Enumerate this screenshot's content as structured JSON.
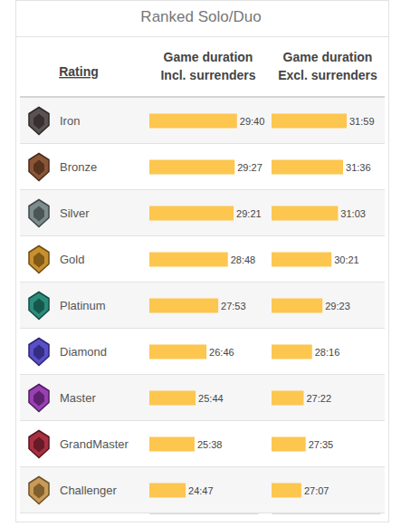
{
  "chart_data": {
    "type": "bar",
    "title": "Ranked Solo/Duo",
    "xlabel": "Rating",
    "orientation": "horizontal",
    "data_labels": true,
    "tick_labels": false,
    "categories": [
      "Iron",
      "Bronze",
      "Silver",
      "Gold",
      "Platinum",
      "Diamond",
      "Master",
      "GrandMaster",
      "Challenger"
    ],
    "ylim": [
      1280,
      1900
    ],
    "y2lim": [
      1435,
      2135
    ],
    "series": [
      {
        "name": "Game duration Incl. surrenders",
        "color": "#fdc64f",
        "values": [
          1780,
          1767,
          1761,
          1728,
          1673,
          1606,
          1544,
          1538,
          1487
        ],
        "value_labels": [
          "29:40",
          "29:27",
          "29:21",
          "28:48",
          "27:53",
          "26:46",
          "25:44",
          "25:38",
          "24:47"
        ]
      },
      {
        "name": "Game duration Excl. surrenders",
        "color": "#fdc64f",
        "axis": "y2",
        "values": [
          1919,
          1896,
          1863,
          1821,
          1763,
          1696,
          1642,
          1655,
          1627
        ],
        "value_labels": [
          "31:59",
          "31:36",
          "31:03",
          "30:21",
          "29:23",
          "28:16",
          "27:22",
          "27:35",
          "27:07"
        ]
      }
    ]
  }
}
